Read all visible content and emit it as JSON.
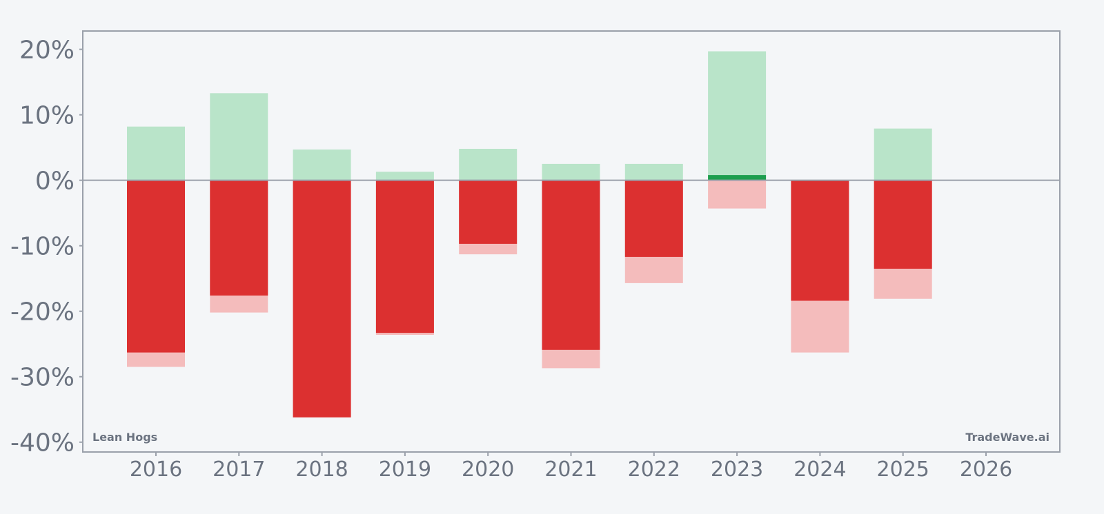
{
  "chart_data": {
    "type": "bar",
    "categories": [
      "2016",
      "2017",
      "2018",
      "2019",
      "2020",
      "2021",
      "2022",
      "2023",
      "2024",
      "2025",
      "2026"
    ],
    "series": [
      {
        "values": [
          8.2,
          13.3,
          4.7,
          1.3,
          4.8,
          2.5,
          2.5,
          19.7,
          0.0,
          7.9,
          null
        ]
      },
      {
        "values": [
          0.0,
          0.0,
          0.0,
          0.0,
          0.0,
          0.0,
          0.0,
          0.8,
          0.0,
          0.0,
          null
        ]
      },
      {
        "values": [
          -28.5,
          -20.2,
          -36.2,
          -23.6,
          -11.3,
          -28.7,
          -15.7,
          -4.3,
          -26.3,
          -18.1,
          null
        ]
      },
      {
        "values": [
          -26.3,
          -17.6,
          -36.2,
          -23.3,
          -9.7,
          -25.9,
          -11.7,
          0.0,
          -18.4,
          -13.5,
          null
        ]
      }
    ],
    "xlabel": "",
    "ylabel": "",
    "ylim": [
      -41.5,
      22.8
    ],
    "yticks": [
      20,
      10,
      0,
      -10,
      -20,
      -30,
      -40
    ],
    "ytick_labels": [
      "20%",
      "10%",
      "0%",
      "-10%",
      "-20%",
      "-30%",
      "-40%"
    ],
    "xtick_labels": [
      "2016",
      "2017",
      "2018",
      "2019",
      "2020",
      "2021",
      "2022",
      "2023",
      "2024",
      "2025",
      "2026"
    ],
    "grid": false,
    "colors": {
      "up_light": "#b9e4c9",
      "up_dark": "#1e9e4e",
      "down_light": "#f4bcbc",
      "down_dark": "#dc3030",
      "zero_line": "#9aa0aa",
      "frame": "#9aa0aa",
      "text": "#6b7380",
      "background": "#f4f6f8"
    },
    "labels": {
      "instrument": "Lean Hogs",
      "watermark": "TradeWave.ai"
    }
  }
}
